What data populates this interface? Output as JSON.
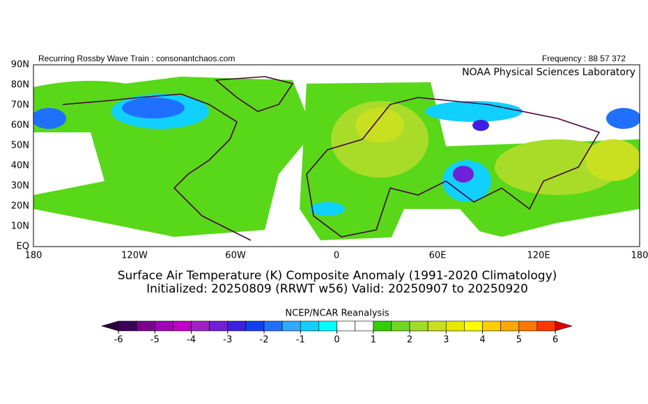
{
  "header": {
    "left": "Recurring Rossby Wave Train : consonantchaos.com",
    "right": "Frequency : 88 57 372"
  },
  "map": {
    "credit": "NOAA Physical Sciences Laboratory",
    "lat_labels": [
      "90N",
      "80N",
      "70N",
      "60N",
      "50N",
      "40N",
      "30N",
      "20N",
      "10N",
      "EQ"
    ],
    "lon_labels": [
      "180",
      "120W",
      "60W",
      "0",
      "60E",
      "120E",
      "180"
    ]
  },
  "title": {
    "line1": "Surface Air Temperature (K) Composite Anomaly (1991-2020 Climatology)",
    "line2": "Initialized: 20250809 (RRWT w56) Valid: 20250907 to 20250920"
  },
  "colorbar": {
    "source": "NCEP/NCAR Reanalysis",
    "ticks": [
      -6,
      -5,
      -4,
      -3,
      -2,
      -1,
      0,
      1,
      2,
      3,
      4,
      5,
      6
    ],
    "range": [
      -6,
      6
    ],
    "under_color": "#2a0040",
    "over_color": "#e00000",
    "colors": [
      "#3c0058",
      "#7a0090",
      "#a000b8",
      "#c000c8",
      "#a020c8",
      "#7020d8",
      "#4020e0",
      "#1040f0",
      "#2070ff",
      "#30a8ff",
      "#10d0ff",
      "#00ffff",
      "#ffffff",
      "#ffffff",
      "#30d000",
      "#70d820",
      "#a0dc28",
      "#c8e020",
      "#e8e800",
      "#ffff00",
      "#ffd000",
      "#ffa800",
      "#ff7800",
      "#ff3800"
    ]
  }
}
